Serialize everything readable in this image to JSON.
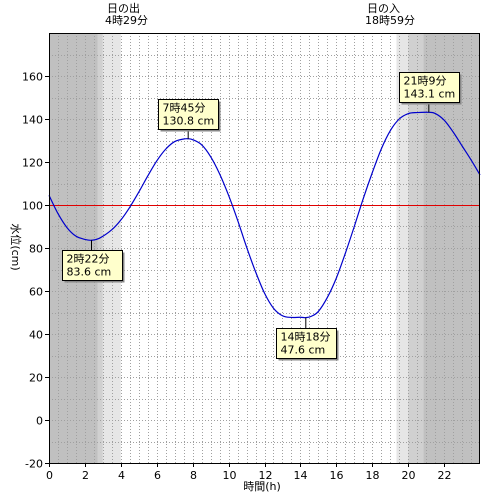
{
  "chart_data": {
    "type": "line",
    "xlabel": "時間(h)",
    "ylabel": "水位(cm)",
    "xlim": [
      0,
      24
    ],
    "ylim": [
      -20,
      180
    ],
    "xticks": [
      0,
      2,
      4,
      6,
      8,
      10,
      12,
      14,
      16,
      18,
      20,
      22
    ],
    "yticks": [
      -20,
      0,
      20,
      40,
      60,
      80,
      100,
      120,
      140,
      160
    ],
    "reference_line": {
      "y": 100,
      "color": "#e00000"
    },
    "sunrise": {
      "title": "日の出",
      "time_label": "4時29分",
      "hour": 4.483
    },
    "sunset": {
      "title": "日の入",
      "time_label": "18時59分",
      "hour": 18.983
    },
    "twilight_bands": [
      {
        "x0": 0,
        "x1": 2.7,
        "shade": "dark"
      },
      {
        "x0": 2.7,
        "x1": 3.0,
        "shade": "mid"
      },
      {
        "x0": 3.0,
        "x1": 4.0,
        "shade": "light"
      },
      {
        "x0": 19.35,
        "x1": 20.0,
        "shade": "light"
      },
      {
        "x0": 20.0,
        "x1": 20.85,
        "shade": "mid"
      },
      {
        "x0": 20.85,
        "x1": 24,
        "shade": "dark"
      }
    ],
    "series": [
      {
        "color": "#0000cc",
        "x": [
          0.0,
          0.5,
          1.0,
          1.5,
          2.0,
          2.367,
          2.8,
          3.5,
          4.0,
          4.5,
          5.0,
          5.5,
          6.0,
          6.5,
          7.0,
          7.5,
          7.75,
          8.0,
          8.5,
          9.0,
          9.5,
          10.0,
          10.5,
          11.0,
          11.5,
          12.0,
          12.5,
          13.0,
          13.5,
          14.0,
          14.3,
          14.6,
          15.0,
          15.5,
          16.0,
          16.5,
          17.0,
          17.5,
          18.0,
          18.5,
          19.0,
          19.5,
          20.0,
          20.5,
          21.15,
          21.5,
          22.0,
          22.5,
          23.0,
          23.5,
          24.0
        ],
        "y": [
          104.5,
          96.0,
          89.5,
          85.5,
          84.0,
          83.6,
          84.5,
          88.5,
          93.0,
          99.0,
          106.0,
          113.5,
          120.5,
          126.0,
          129.5,
          130.7,
          130.8,
          130.4,
          128.0,
          122.5,
          114.5,
          104.5,
          93.0,
          80.5,
          69.0,
          59.0,
          52.0,
          48.5,
          47.7,
          47.8,
          47.6,
          48.2,
          50.5,
          57.0,
          66.0,
          77.5,
          90.0,
          103.0,
          115.0,
          126.0,
          134.5,
          140.0,
          142.5,
          143.0,
          143.1,
          142.6,
          139.5,
          134.0,
          127.5,
          121.0,
          114.0
        ]
      }
    ],
    "annotations": [
      {
        "time": "2時22分",
        "level": "83.6 cm",
        "x": 2.367,
        "y": 83.6,
        "position": "below"
      },
      {
        "time": "7時45分",
        "level": "130.8 cm",
        "x": 7.75,
        "y": 130.8,
        "position": "above"
      },
      {
        "time": "14時18分",
        "level": "47.6 cm",
        "x": 14.3,
        "y": 47.6,
        "position": "below"
      },
      {
        "time": "21時9分",
        "level": "143.1 cm",
        "x": 21.15,
        "y": 143.1,
        "position": "above"
      }
    ]
  },
  "style": {
    "band_dark": "#c0c0c0",
    "band_mid": "#d0d0d0",
    "band_light": "#e6e6e6",
    "grid_color": "#a0a0a0",
    "callout_fill": "#ffffcc"
  }
}
